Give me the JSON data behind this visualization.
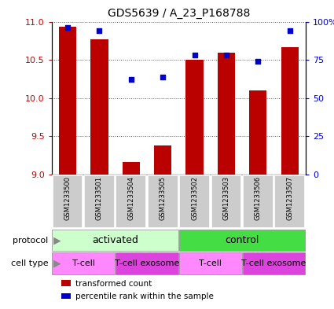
{
  "title": "GDS5639 / A_23_P168788",
  "samples": [
    "GSM1233500",
    "GSM1233501",
    "GSM1233504",
    "GSM1233505",
    "GSM1233502",
    "GSM1233503",
    "GSM1233506",
    "GSM1233507"
  ],
  "transformed_count": [
    10.93,
    10.77,
    9.17,
    9.38,
    10.5,
    10.59,
    10.1,
    10.67
  ],
  "percentile_rank": [
    96,
    94,
    62,
    64,
    78,
    78,
    74,
    94
  ],
  "ylim_left": [
    9,
    11
  ],
  "ylim_right": [
    0,
    100
  ],
  "yticks_left": [
    9,
    9.5,
    10,
    10.5,
    11
  ],
  "yticks_right": [
    0,
    25,
    50,
    75,
    100
  ],
  "ytick_labels_right": [
    "0",
    "25",
    "50",
    "75",
    "100%"
  ],
  "bar_color": "#bb0000",
  "marker_color": "#0000cc",
  "bar_bottom": 9,
  "protocol_groups": [
    {
      "label": "activated",
      "span": [
        0,
        4
      ],
      "color": "#ccffcc"
    },
    {
      "label": "control",
      "span": [
        4,
        8
      ],
      "color": "#44dd44"
    }
  ],
  "cell_type_groups": [
    {
      "label": "T-cell",
      "span": [
        0,
        2
      ],
      "color": "#ff88ff"
    },
    {
      "label": "T-cell exosome",
      "span": [
        2,
        4
      ],
      "color": "#dd44dd"
    },
    {
      "label": "T-cell",
      "span": [
        4,
        6
      ],
      "color": "#ff88ff"
    },
    {
      "label": "T-cell exosome",
      "span": [
        6,
        8
      ],
      "color": "#dd44dd"
    }
  ],
  "legend_items": [
    {
      "label": "transformed count",
      "color": "#bb0000"
    },
    {
      "label": "percentile rank within the sample",
      "color": "#0000cc"
    }
  ],
  "protocol_label": "protocol",
  "cell_type_label": "cell type",
  "left_axis_color": "#cc0000",
  "right_axis_color": "#0000cc",
  "grid_color": "#555555",
  "sample_box_color": "#cccccc",
  "sample_box_edge": "#aaaaaa"
}
